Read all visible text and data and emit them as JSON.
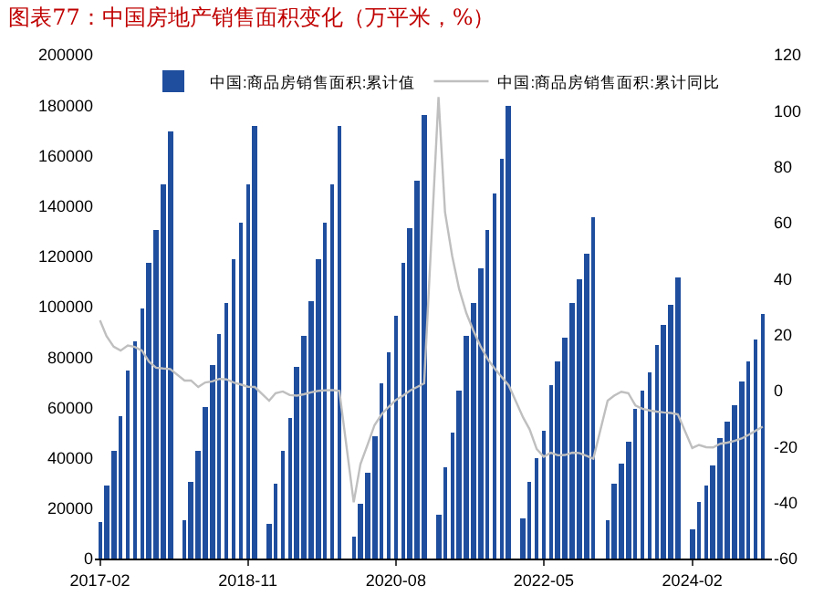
{
  "chart_data": {
    "type": "bar",
    "title": "图表77：中国房地产销售面积变化（万平米，%）",
    "x": [
      "2017-02",
      "2017-03",
      "2017-04",
      "2017-05",
      "2017-06",
      "2017-07",
      "2017-08",
      "2017-09",
      "2017-10",
      "2017-11",
      "2017-12",
      "2018-02",
      "2018-03",
      "2018-04",
      "2018-05",
      "2018-06",
      "2018-07",
      "2018-08",
      "2018-09",
      "2018-10",
      "2018-11",
      "2018-12",
      "2019-02",
      "2019-03",
      "2019-04",
      "2019-05",
      "2019-06",
      "2019-07",
      "2019-08",
      "2019-09",
      "2019-10",
      "2019-11",
      "2019-12",
      "2020-02",
      "2020-03",
      "2020-04",
      "2020-05",
      "2020-06",
      "2020-07",
      "2020-08",
      "2020-09",
      "2020-10",
      "2020-11",
      "2020-12",
      "2021-02",
      "2021-03",
      "2021-04",
      "2021-05",
      "2021-06",
      "2021-07",
      "2021-08",
      "2021-09",
      "2021-10",
      "2021-11",
      "2021-12",
      "2022-02",
      "2022-03",
      "2022-04",
      "2022-05",
      "2022-06",
      "2022-07",
      "2022-08",
      "2022-09",
      "2022-10",
      "2022-11",
      "2022-12",
      "2023-02",
      "2023-03",
      "2023-04",
      "2023-05",
      "2023-06",
      "2023-07",
      "2023-08",
      "2023-09",
      "2023-10",
      "2023-11",
      "2023-12",
      "2024-02",
      "2024-03",
      "2024-04",
      "2024-05",
      "2024-06",
      "2024-07",
      "2024-08",
      "2024-09",
      "2024-10",
      "2024-11",
      "2024-12"
    ],
    "series": [
      {
        "name": "中国:商品房销售面积:累计值",
        "color": "#1f4e9e",
        "values": [
          14499,
          29035,
          42662,
          56591,
          74662,
          86007,
          98984,
          117713,
          130254,
          148805,
          169408,
          15009,
          30238,
          42473,
          60134,
          77143,
          89150,
          101812,
          118941,
          133142,
          148604,
          171654,
          14102,
          29829,
          42404,
          55518,
          75786,
          88314,
          101849,
          119179,
          133251,
          148905,
          171558,
          8475,
          21978,
          33973,
          48703,
          69404,
          81787,
          96119,
          117073,
          131049,
          150330,
          176086,
          17363,
          36007,
          49950,
          66615,
          88635,
          101804,
          115121,
          130332,
          144743,
          158815,
          179433,
          15703,
          30655,
          39768,
          50738,
          68923,
          78178,
          87890,
          101422,
          111179,
          121250,
          135837,
          15133,
          29946,
          37636,
          46440,
          59515,
          66563,
          73949,
          84806,
          92579,
          100509,
          111735,
          11369,
          22668,
          29252,
          36642,
          47916,
          54138,
          60718,
          70284,
          77930,
          86924,
          97385
        ]
      },
      {
        "name": "中国:商品房销售面积:累计同比",
        "type": "line",
        "axis": "y2",
        "color": "#bfbfbf",
        "values": [
          25.1,
          19.5,
          15.7,
          14.3,
          16.1,
          15.6,
          14.3,
          10.3,
          8.2,
          7.9,
          7.7,
          3.6,
          3.6,
          1.3,
          2.9,
          3.3,
          4.2,
          4.0,
          2.9,
          2.2,
          1.4,
          1.3,
          -3.6,
          -0.9,
          -0.3,
          -1.6,
          -1.8,
          -1.3,
          -0.6,
          -0.1,
          0.1,
          0.2,
          -0.1,
          -39.9,
          -26.3,
          -19.3,
          -12.3,
          -8.4,
          -5.8,
          -3.3,
          -1.8,
          0.0,
          1.3,
          2.6,
          104.9,
          63.8,
          48.1,
          36.3,
          27.7,
          21.5,
          15.9,
          11.3,
          7.9,
          4.8,
          1.9,
          -9.6,
          -13.8,
          -20.9,
          -23.6,
          -22.2,
          -23.1,
          -23.0,
          -22.2,
          -22.3,
          -23.3,
          -24.3,
          -3.6,
          -1.8,
          -0.4,
          -0.9,
          -5.3,
          -6.5,
          -7.1,
          -7.5,
          -7.8,
          -8.0,
          -8.5,
          -20.5,
          -19.4,
          -20.2,
          -20.3,
          -19.0,
          -18.6,
          -18.0,
          -17.1,
          -15.8,
          -14.3,
          -12.9
        ]
      }
    ],
    "xlim": [
      "2017-01-10",
      "2025-01-10"
    ],
    "xticks": [
      "2017-02",
      "2018-11",
      "2020-08",
      "2022-05",
      "2024-02"
    ],
    "ylim": [
      0,
      200000
    ],
    "yticks": [
      0,
      20000,
      40000,
      60000,
      80000,
      100000,
      120000,
      140000,
      160000,
      180000,
      200000
    ],
    "y2lim": [
      -60,
      120
    ],
    "y2ticks": [
      -60,
      -40,
      -20,
      0,
      20,
      40,
      60,
      80,
      100,
      120
    ],
    "legend": "top",
    "grid": false
  }
}
